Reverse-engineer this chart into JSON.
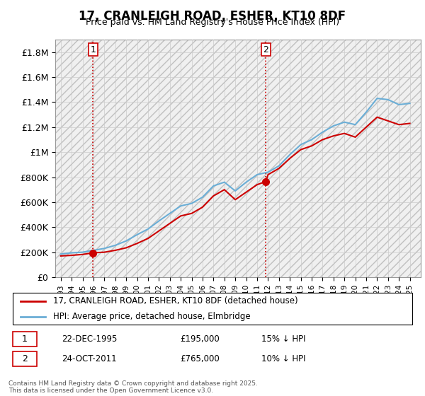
{
  "title": "17, CRANLEIGH ROAD, ESHER, KT10 8DF",
  "subtitle": "Price paid vs. HM Land Registry's House Price Index (HPI)",
  "ylabel_ticks": [
    "£0",
    "£200K",
    "£400K",
    "£600K",
    "£800K",
    "£1M",
    "£1.2M",
    "£1.4M",
    "£1.6M",
    "£1.8M"
  ],
  "ytick_values": [
    0,
    200000,
    400000,
    600000,
    800000,
    1000000,
    1200000,
    1400000,
    1600000,
    1800000
  ],
  "ylim": [
    0,
    1900000
  ],
  "xlim_start": 1993,
  "xlim_end": 2026,
  "legend_line1": "17, CRANLEIGH ROAD, ESHER, KT10 8DF (detached house)",
  "legend_line2": "HPI: Average price, detached house, Elmbridge",
  "annotation1_label": "1",
  "annotation1_date": "22-DEC-1995",
  "annotation1_price": "£195,000",
  "annotation1_note": "15% ↓ HPI",
  "annotation2_label": "2",
  "annotation2_date": "24-OCT-2011",
  "annotation2_price": "£765,000",
  "annotation2_note": "10% ↓ HPI",
  "footnote": "Contains HM Land Registry data © Crown copyright and database right 2025.\nThis data is licensed under the Open Government Licence v3.0.",
  "sale_color": "#cc0000",
  "hpi_color": "#6baed6",
  "background_hatch_color": "#d0d0d0",
  "grid_color": "#cccccc",
  "sale1_year": 1995.97,
  "sale1_price": 195000,
  "sale2_year": 2011.8,
  "sale2_price": 765000,
  "vline1_year": 1995.97,
  "vline2_year": 2011.8,
  "sale_line_data_x": [
    1993,
    1994,
    1995,
    1995.97,
    1997,
    1998,
    1999,
    2000,
    2001,
    2002,
    2003,
    2004,
    2005,
    2006,
    2007,
    2008,
    2009,
    2010,
    2011,
    2011.8,
    2012,
    2013,
    2014,
    2015,
    2016,
    2017,
    2018,
    2019,
    2020,
    2021,
    2022,
    2023,
    2024,
    2025
  ],
  "sale_line_data_y": [
    170000,
    175000,
    182000,
    195000,
    200000,
    215000,
    235000,
    270000,
    310000,
    370000,
    430000,
    490000,
    510000,
    560000,
    650000,
    700000,
    620000,
    680000,
    740000,
    765000,
    820000,
    870000,
    950000,
    1020000,
    1050000,
    1100000,
    1130000,
    1150000,
    1120000,
    1200000,
    1280000,
    1250000,
    1220000,
    1230000
  ],
  "hpi_line_data_x": [
    1993,
    1994,
    1995,
    1996,
    1997,
    1998,
    1999,
    2000,
    2001,
    2002,
    2003,
    2004,
    2005,
    2006,
    2007,
    2008,
    2009,
    2010,
    2011,
    2012,
    2013,
    2014,
    2015,
    2016,
    2017,
    2018,
    2019,
    2020,
    2021,
    2022,
    2023,
    2024,
    2025
  ],
  "hpi_line_data_y": [
    185000,
    195000,
    200000,
    215000,
    230000,
    255000,
    290000,
    340000,
    385000,
    450000,
    510000,
    570000,
    590000,
    640000,
    730000,
    760000,
    690000,
    760000,
    820000,
    840000,
    890000,
    980000,
    1060000,
    1100000,
    1160000,
    1210000,
    1240000,
    1220000,
    1320000,
    1430000,
    1420000,
    1380000,
    1390000
  ]
}
